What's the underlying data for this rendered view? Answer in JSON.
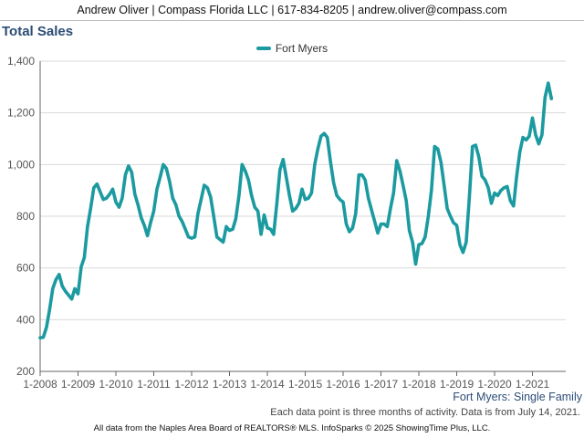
{
  "header": {
    "contact": "Andrew Oliver | Compass Florida LLC | 617-834-8205 | andrew.oliver@compass.com"
  },
  "footer": {
    "subtitle": "Fort Myers: Single Family",
    "note": "Each data point is three months of activity. Data is from July 14, 2021.",
    "source": "All data from the Naples Area Board of REALTORS® MLS. InfoSparks © 2025 ShowingTime Plus, LLC."
  },
  "chart_data": {
    "type": "line",
    "title": "Total Sales",
    "xlabel": "",
    "ylabel": "",
    "ylim": [
      200,
      1400
    ],
    "yticks": [
      200,
      400,
      600,
      800,
      1000,
      1200,
      1400
    ],
    "ytick_labels": [
      "200",
      "400",
      "600",
      "800",
      "1,000",
      "1,200",
      "1,400"
    ],
    "xticks": [
      "1-2008",
      "1-2009",
      "1-2010",
      "1-2011",
      "1-2012",
      "1-2013",
      "1-2014",
      "1-2015",
      "1-2016",
      "1-2017",
      "1-2018",
      "1-2019",
      "1-2020",
      "1-2021"
    ],
    "grid": "horizontal",
    "legend": "top-center",
    "colors": {
      "series": "#1b9aa0"
    },
    "series": [
      {
        "name": "Fort Myers",
        "start": "1-2008",
        "values": [
          330,
          332,
          370,
          440,
          520,
          555,
          575,
          530,
          510,
          495,
          480,
          520,
          500,
          605,
          640,
          760,
          830,
          910,
          925,
          895,
          865,
          870,
          885,
          905,
          855,
          835,
          870,
          960,
          995,
          970,
          885,
          845,
          795,
          765,
          725,
          775,
          820,
          905,
          950,
          1000,
          985,
          935,
          870,
          845,
          800,
          780,
          750,
          720,
          715,
          720,
          810,
          865,
          920,
          910,
          875,
          800,
          720,
          710,
          700,
          760,
          745,
          750,
          790,
          880,
          1000,
          975,
          940,
          880,
          835,
          820,
          730,
          805,
          755,
          750,
          730,
          850,
          980,
          1020,
          950,
          880,
          820,
          830,
          850,
          905,
          865,
          870,
          890,
          1000,
          1060,
          1110,
          1120,
          1105,
          1010,
          930,
          880,
          865,
          855,
          770,
          740,
          755,
          810,
          960,
          960,
          940,
          870,
          825,
          780,
          735,
          770,
          770,
          760,
          830,
          890,
          1015,
          975,
          920,
          860,
          745,
          700,
          615,
          690,
          695,
          720,
          800,
          900,
          1070,
          1060,
          1010,
          920,
          830,
          800,
          775,
          765,
          690,
          660,
          700,
          870,
          1070,
          1075,
          1030,
          955,
          940,
          910,
          850,
          890,
          880,
          900,
          910,
          915,
          860,
          840,
          955,
          1050,
          1105,
          1095,
          1110,
          1180,
          1115,
          1080,
          1115,
          1260,
          1315,
          1255
        ]
      }
    ]
  }
}
